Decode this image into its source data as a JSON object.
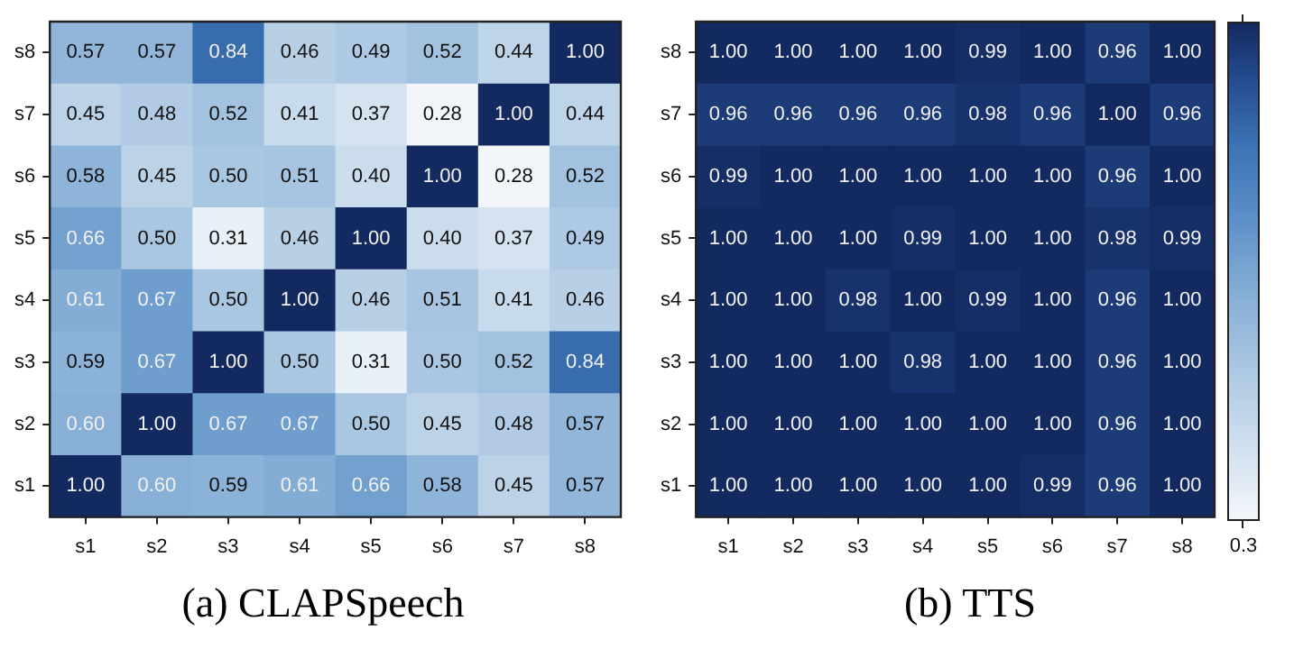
{
  "chart_data": [
    {
      "type": "heatmap",
      "title": "(a) CLAPSpeech",
      "categories": [
        "s1",
        "s2",
        "s3",
        "s4",
        "s5",
        "s6",
        "s7",
        "s8"
      ],
      "y_categories": [
        "s8",
        "s7",
        "s6",
        "s5",
        "s4",
        "s3",
        "s2",
        "s1"
      ],
      "data_labels": true,
      "cells": [
        [
          0.57,
          0.57,
          0.84,
          0.46,
          0.49,
          0.52,
          0.44,
          1.0
        ],
        [
          0.45,
          0.48,
          0.52,
          0.41,
          0.37,
          0.28,
          1.0,
          0.44
        ],
        [
          0.58,
          0.45,
          0.5,
          0.51,
          0.4,
          1.0,
          0.28,
          0.52
        ],
        [
          0.66,
          0.5,
          0.31,
          0.46,
          1.0,
          0.4,
          0.37,
          0.49
        ],
        [
          0.61,
          0.67,
          0.5,
          1.0,
          0.46,
          0.51,
          0.41,
          0.46
        ],
        [
          0.59,
          0.67,
          1.0,
          0.5,
          0.31,
          0.5,
          0.52,
          0.84
        ],
        [
          0.6,
          1.0,
          0.67,
          0.67,
          0.5,
          0.45,
          0.48,
          0.57
        ],
        [
          1.0,
          0.6,
          0.59,
          0.61,
          0.66,
          0.58,
          0.45,
          0.57
        ]
      ],
      "cell_labels": [
        [
          "0.57",
          "0.57",
          "0.84",
          "0.46",
          "0.49",
          "0.52",
          "0.44",
          "1.00"
        ],
        [
          "0.45",
          "0.48",
          "0.52",
          "0.41",
          "0.37",
          "0.28",
          "1.00",
          "0.44"
        ],
        [
          "0.58",
          "0.45",
          "0.50",
          "0.51",
          "0.40",
          "1.00",
          "0.28",
          "0.52"
        ],
        [
          "0.66",
          "0.50",
          "0.31",
          "0.46",
          "1.00",
          "0.40",
          "0.37",
          "0.49"
        ],
        [
          "0.61",
          "0.67",
          "0.50",
          "1.00",
          "0.46",
          "0.51",
          "0.41",
          "0.46"
        ],
        [
          "0.59",
          "0.67",
          "1.00",
          "0.50",
          "0.31",
          "0.50",
          "0.52",
          "0.84"
        ],
        [
          "0.60",
          "1.00",
          "0.67",
          "0.67",
          "0.50",
          "0.45",
          "0.48",
          "0.57"
        ],
        [
          "1.00",
          "0.60",
          "0.59",
          "0.61",
          "0.66",
          "0.58",
          "0.45",
          "0.57"
        ]
      ]
    },
    {
      "type": "heatmap",
      "title": "(b) TTS",
      "categories": [
        "s1",
        "s2",
        "s3",
        "s4",
        "s5",
        "s6",
        "s7",
        "s8"
      ],
      "y_categories": [
        "s8",
        "s7",
        "s6",
        "s5",
        "s4",
        "s3",
        "s2",
        "s1"
      ],
      "data_labels": true,
      "annotations": [
        "0.3"
      ],
      "cells": [
        [
          1.0,
          1.0,
          1.0,
          1.0,
          0.99,
          1.0,
          0.96,
          1.0
        ],
        [
          0.96,
          0.96,
          0.96,
          0.96,
          0.98,
          0.96,
          1.0,
          0.96
        ],
        [
          0.99,
          1.0,
          1.0,
          1.0,
          1.0,
          1.0,
          0.96,
          1.0
        ],
        [
          1.0,
          1.0,
          1.0,
          0.99,
          1.0,
          1.0,
          0.98,
          0.99
        ],
        [
          1.0,
          1.0,
          0.98,
          1.0,
          0.99,
          1.0,
          0.96,
          1.0
        ],
        [
          1.0,
          1.0,
          1.0,
          0.98,
          1.0,
          1.0,
          0.96,
          1.0
        ],
        [
          1.0,
          1.0,
          1.0,
          1.0,
          1.0,
          1.0,
          0.96,
          1.0
        ],
        [
          1.0,
          1.0,
          1.0,
          1.0,
          1.0,
          0.99,
          0.96,
          1.0
        ]
      ],
      "cell_labels": [
        [
          "1.00",
          "1.00",
          "1.00",
          "1.00",
          "0.99",
          "1.00",
          "0.96",
          "1.00"
        ],
        [
          "0.96",
          "0.96",
          "0.96",
          "0.96",
          "0.98",
          "0.96",
          "1.00",
          "0.96"
        ],
        [
          "0.99",
          "1.00",
          "1.00",
          "1.00",
          "1.00",
          "1.00",
          "0.96",
          "1.00"
        ],
        [
          "1.00",
          "1.00",
          "1.00",
          "0.99",
          "1.00",
          "1.00",
          "0.98",
          "0.99"
        ],
        [
          "1.00",
          "1.00",
          "0.98",
          "1.00",
          "0.99",
          "1.00",
          "0.96",
          "1.00"
        ],
        [
          "1.00",
          "1.00",
          "1.00",
          "0.98",
          "1.00",
          "1.00",
          "0.96",
          "1.00"
        ],
        [
          "1.00",
          "1.00",
          "1.00",
          "1.00",
          "1.00",
          "1.00",
          "0.96",
          "1.00"
        ],
        [
          "1.00",
          "1.00",
          "1.00",
          "1.00",
          "1.00",
          "0.99",
          "0.96",
          "1.00"
        ]
      ]
    }
  ]
}
